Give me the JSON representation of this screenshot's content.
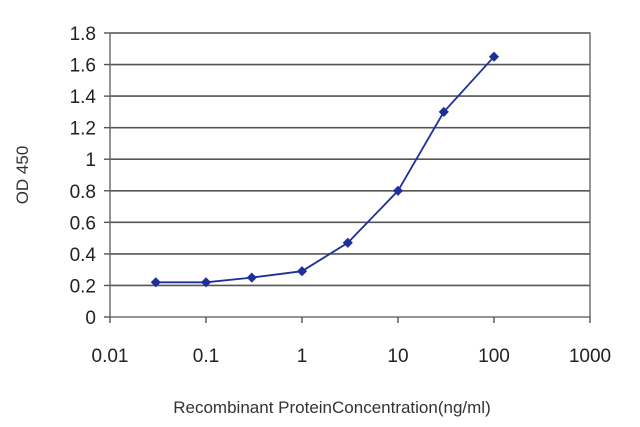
{
  "chart_data": {
    "type": "line",
    "title": "",
    "xlabel": "Recombinant ProteinConcentration(ng/ml)",
    "ylabel": "OD 450",
    "x_scale": "log",
    "xlim": [
      0.01,
      1000
    ],
    "ylim": [
      0,
      1.8
    ],
    "x_ticks": [
      "0.01",
      "0.1",
      "1",
      "10",
      "100",
      "1000"
    ],
    "y_ticks": [
      "0",
      "0.2",
      "0.4",
      "0.6",
      "0.8",
      "1",
      "1.2",
      "1.4",
      "1.6",
      "1.8"
    ],
    "grid": "horizontal",
    "series": [
      {
        "x": [
          0.03,
          0.1,
          0.3,
          1,
          3,
          10,
          30,
          100
        ],
        "y": [
          0.22,
          0.22,
          0.25,
          0.29,
          0.47,
          0.8,
          1.3,
          1.65
        ],
        "color": "#1f2f9a"
      }
    ]
  }
}
